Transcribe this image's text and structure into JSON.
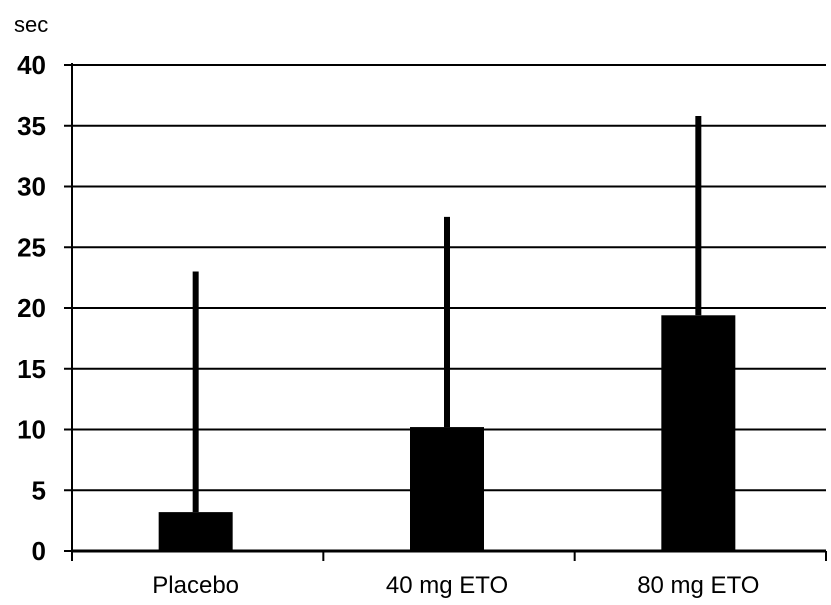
{
  "chart_data": {
    "type": "bar",
    "ylabel": "sec",
    "categories": [
      "Placebo",
      "40 mg ETO",
      "80 mg ETO"
    ],
    "series": [
      {
        "values": [
          3.2,
          10.2,
          19.4
        ],
        "error_upper": [
          23.0,
          27.5,
          35.8
        ]
      }
    ],
    "ylim": [
      0,
      40
    ],
    "yticks": [
      0,
      5,
      10,
      15,
      20,
      25,
      30,
      35,
      40
    ],
    "ytick_labels": [
      "0",
      "5",
      "10",
      "15",
      "20",
      "25",
      "30",
      "35",
      "40"
    ],
    "grid": "horizontal",
    "colors": {
      "bar": "#000000",
      "grid": "#000000",
      "background": "#ffffff"
    }
  }
}
